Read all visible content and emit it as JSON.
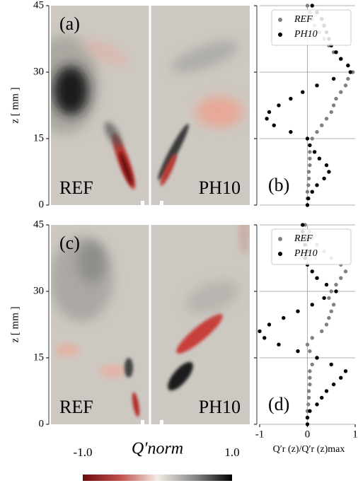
{
  "chart_data": [
    {
      "type": "heatmap",
      "panel_label": "(a)",
      "left_label": "REF",
      "right_label": "PH10",
      "ylabel": "z [ mm ]",
      "ylim": [
        0,
        45
      ],
      "yticks": [
        0,
        15,
        30,
        45
      ]
    },
    {
      "type": "scatter",
      "panel_label": "(b)",
      "legend": "upper right",
      "grid": true,
      "xlim": [
        -1,
        1
      ],
      "ylim": [
        0,
        45
      ],
      "yticks": [
        0,
        15,
        30,
        45
      ],
      "z": [
        0,
        1.5,
        3,
        4.5,
        6,
        7.5,
        9,
        10.5,
        12,
        13.5,
        15,
        16.5,
        18,
        19.5,
        21,
        22.5,
        24,
        25.5,
        27,
        28.5,
        30,
        31.5,
        33,
        34.5,
        36,
        37.5,
        39,
        40.5,
        42,
        43.5,
        45
      ],
      "series": [
        {
          "name": "REF",
          "color": "#808080",
          "values": [
            0,
            0,
            0,
            0.02,
            0.03,
            0.03,
            0.05,
            0.05,
            0.05,
            0.05,
            0.1,
            0.2,
            0.3,
            0.4,
            0.5,
            0.55,
            0.6,
            0.7,
            0.8,
            0.85,
            0.95,
            0.85,
            0.7,
            0.55,
            0.45,
            0.35,
            0.25,
            0.15,
            0.1,
            0.05,
            0
          ]
        },
        {
          "name": "PH10",
          "color": "#000000",
          "values": [
            0,
            0.02,
            0.1,
            0.2,
            0.35,
            0.45,
            0.4,
            0.25,
            0.15,
            0.05,
            0,
            -0.35,
            -0.7,
            -0.85,
            -0.8,
            -0.6,
            -0.35,
            -0.1,
            0.2,
            0.55,
            0.9,
            0.85,
            0.7,
            0.6,
            0.5,
            0.45,
            0.4,
            0.35,
            0.3,
            0.2,
            0.1
          ]
        }
      ]
    },
    {
      "type": "heatmap",
      "panel_label": "(c)",
      "left_label": "REF",
      "right_label": "PH10",
      "ylabel": "z [ mm ]",
      "ylim": [
        0,
        45
      ],
      "yticks": [
        0,
        15,
        30,
        45
      ]
    },
    {
      "type": "scatter",
      "panel_label": "(d)",
      "legend": "upper right",
      "grid": true,
      "xlim": [
        -1,
        1
      ],
      "xticks": [
        -1,
        0,
        1
      ],
      "xlabel": "Q′r (z)/Q′r (z)max",
      "ylim": [
        0,
        45
      ],
      "yticks": [
        0,
        15,
        30,
        45
      ],
      "z": [
        0,
        1.5,
        3,
        4.5,
        6,
        7.5,
        9,
        10.5,
        12,
        13.5,
        15,
        16.5,
        18,
        19.5,
        21,
        22.5,
        24,
        25.5,
        27,
        28.5,
        30,
        31.5,
        33,
        34.5,
        36,
        37.5,
        39,
        40.5,
        42,
        43.5,
        45
      ],
      "series": [
        {
          "name": "REF",
          "color": "#808080",
          "values": [
            0,
            0,
            0,
            0.02,
            0.03,
            0.03,
            0.05,
            0.05,
            0.05,
            0.1,
            0.2,
            0.05,
            0,
            0.1,
            0.3,
            0.4,
            0.45,
            0.5,
            0.55,
            0.45,
            0.5,
            0.6,
            0.7,
            0.8,
            0.7,
            0.5,
            0.35,
            0.2,
            0.1,
            0.05,
            -0.05
          ]
        },
        {
          "name": "PH10",
          "color": "#000000",
          "values": [
            0,
            0,
            0.05,
            0.2,
            0.3,
            0.4,
            0.55,
            0.7,
            0.8,
            0.5,
            0.2,
            -0.2,
            -0.6,
            -0.9,
            -1,
            -0.8,
            -0.5,
            -0.2,
            0.1,
            0.35,
            0.6,
            0.4,
            0.2,
            0.1,
            0,
            -0.05,
            0,
            -0.05,
            -0.05,
            -0.1,
            -0.1
          ]
        }
      ]
    },
    {
      "type": "colorbar",
      "label": "Q′norm",
      "lim": [
        -1,
        1
      ],
      "ticks": [
        {
          "value": -1,
          "label": "-1.0"
        },
        {
          "value": 1,
          "label": "1.0"
        }
      ],
      "colors": [
        "#6e0a10",
        "#c0504a",
        "#f3ece6",
        "#8a8a8a",
        "#000000"
      ]
    }
  ]
}
